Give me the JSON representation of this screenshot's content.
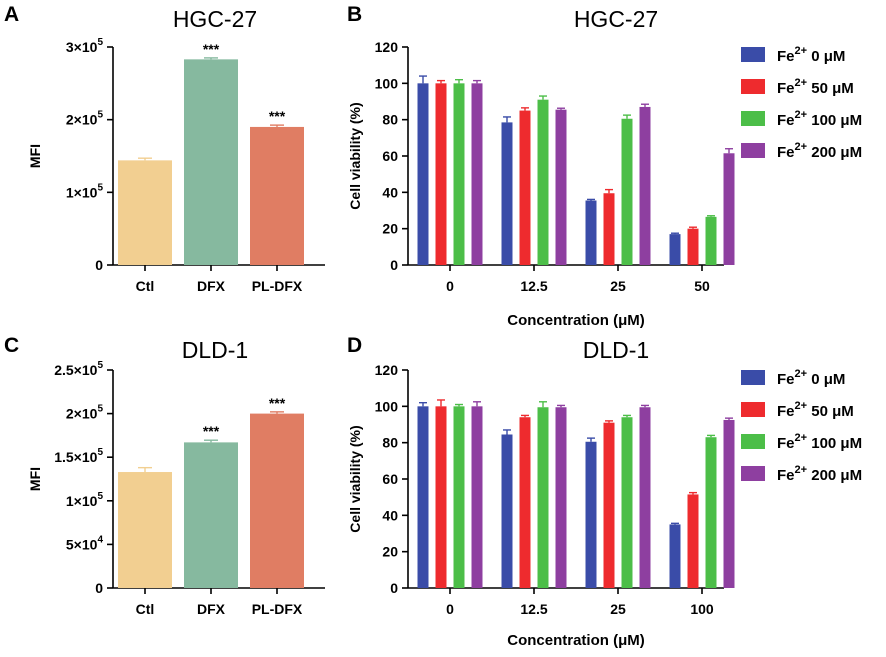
{
  "colors": {
    "ctl": "#F2CF91",
    "dfx": "#86B99F",
    "pldfx": "#E07D63",
    "fe0": "#3A4CA8",
    "fe50": "#EE2B2E",
    "fe100": "#4CBE48",
    "fe200": "#8E3FA0"
  },
  "chart_data": [
    {
      "panel": "A",
      "type": "bar",
      "title": "HGC-27",
      "ylabel": "MFI",
      "xlabel": "",
      "ylim": [
        0,
        300000
      ],
      "yticks": [
        0,
        100000,
        200000,
        300000
      ],
      "ytick_labels": [
        "0",
        "1×10",
        "2×10",
        "3×10"
      ],
      "ytick_exponents": [
        "",
        "5",
        "5",
        "5"
      ],
      "categories": [
        "Ctl",
        "DFX",
        "PL-DFX"
      ],
      "values": [
        144000,
        283000,
        190000
      ],
      "errors": [
        3000,
        2000,
        2500
      ],
      "annotations": [
        "",
        "***",
        "***"
      ],
      "bar_colors": [
        "ctl",
        "dfx",
        "pldfx"
      ]
    },
    {
      "panel": "B",
      "type": "bar",
      "title": "HGC-27",
      "ylabel": "Cell viability (%)",
      "xlabel": "Concentration (μM)",
      "ylim": [
        0,
        120
      ],
      "yticks": [
        0,
        20,
        40,
        60,
        80,
        100,
        120
      ],
      "categories": [
        "0",
        "12.5",
        "25",
        "50"
      ],
      "series": [
        {
          "name": "Fe",
          "sup": "2+",
          "suffix": " 0 μM",
          "color": "fe0",
          "values": [
            100,
            78.5,
            35.5,
            17
          ],
          "errors": [
            4,
            3,
            0.6,
            0.5
          ]
        },
        {
          "name": "Fe",
          "sup": "2+",
          "suffix": " 50 μM",
          "color": "fe50",
          "values": [
            100,
            85,
            39.5,
            20
          ],
          "errors": [
            1.5,
            1.5,
            2,
            0.8
          ]
        },
        {
          "name": "Fe",
          "sup": "2+",
          "suffix": " 100 μM",
          "color": "fe100",
          "values": [
            100,
            91,
            80.5,
            26.5
          ],
          "errors": [
            2,
            2,
            2,
            0.6
          ]
        },
        {
          "name": "Fe",
          "sup": "2+",
          "suffix": " 200 μM",
          "color": "fe200",
          "values": [
            100,
            85.5,
            87,
            61.5
          ],
          "errors": [
            1.5,
            0.8,
            1.5,
            2.5
          ]
        }
      ]
    },
    {
      "panel": "C",
      "type": "bar",
      "title": "DLD-1",
      "ylabel": "MFI",
      "xlabel": "",
      "ylim": [
        0,
        250000
      ],
      "yticks": [
        0,
        50000,
        100000,
        150000,
        200000,
        250000
      ],
      "ytick_labels": [
        "0",
        "5×10",
        "1×10",
        "1.5×10",
        "2×10",
        "2.5×10"
      ],
      "ytick_exponents": [
        "",
        "4",
        "5",
        "5",
        "5",
        "5"
      ],
      "categories": [
        "Ctl",
        "DFX",
        "PL-DFX"
      ],
      "values": [
        133000,
        167000,
        200000
      ],
      "errors": [
        5000,
        2500,
        2000
      ],
      "annotations": [
        "",
        "***",
        "***"
      ],
      "bar_colors": [
        "ctl",
        "dfx",
        "pldfx"
      ]
    },
    {
      "panel": "D",
      "type": "bar",
      "title": "DLD-1",
      "ylabel": "Cell viability (%)",
      "xlabel": "Concentration (μM)",
      "ylim": [
        0,
        120
      ],
      "yticks": [
        0,
        20,
        40,
        60,
        80,
        100,
        120
      ],
      "categories": [
        "0",
        "12.5",
        "25",
        "100"
      ],
      "series": [
        {
          "name": "Fe",
          "sup": "2+",
          "suffix": " 0 μM",
          "color": "fe0",
          "values": [
            100,
            84.5,
            80.5,
            35
          ],
          "errors": [
            2,
            2.5,
            2,
            0.6
          ]
        },
        {
          "name": "Fe",
          "sup": "2+",
          "suffix": " 50 μM",
          "color": "fe50",
          "values": [
            100,
            94,
            91,
            51.5
          ],
          "errors": [
            3.5,
            1,
            1,
            1
          ]
        },
        {
          "name": "Fe",
          "sup": "2+",
          "suffix": " 100 μM",
          "color": "fe100",
          "values": [
            100,
            99.5,
            94,
            83
          ],
          "errors": [
            1,
            3,
            1,
            1
          ]
        },
        {
          "name": "Fe",
          "sup": "2+",
          "suffix": " 200 μM",
          "color": "fe200",
          "values": [
            100,
            99.5,
            99.5,
            92.5
          ],
          "errors": [
            2.5,
            1,
            1,
            1
          ]
        }
      ]
    }
  ]
}
